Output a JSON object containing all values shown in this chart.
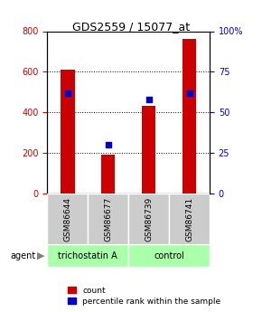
{
  "title": "GDS2559 / 15077_at",
  "samples": [
    "GSM86644",
    "GSM86677",
    "GSM86739",
    "GSM86741"
  ],
  "counts": [
    610,
    190,
    430,
    760
  ],
  "percentiles": [
    62,
    30,
    58,
    62
  ],
  "groups": [
    {
      "label": "trichostatin A",
      "samples": [
        0,
        1
      ],
      "color": "#aaffaa"
    },
    {
      "label": "control",
      "samples": [
        2,
        3
      ],
      "color": "#aaffaa"
    }
  ],
  "ylim_left": [
    0,
    800
  ],
  "ylim_right": [
    0,
    100
  ],
  "yticks_left": [
    0,
    200,
    400,
    600,
    800
  ],
  "yticks_right": [
    0,
    25,
    50,
    75,
    100
  ],
  "bar_color": "#cc0000",
  "dot_color": "#0000cc",
  "bar_width": 0.35,
  "background_color": "#ffffff",
  "plot_bg_color": "#ffffff",
  "grid_color": "#000000",
  "agent_label": "agent",
  "legend_count_label": "count",
  "legend_pct_label": "percentile rank within the sample"
}
